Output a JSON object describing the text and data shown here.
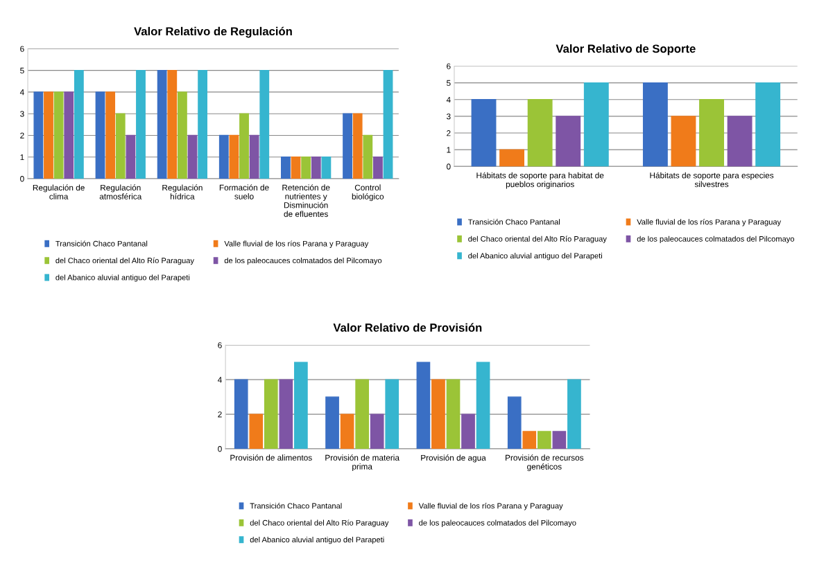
{
  "chart_data": [
    {
      "type": "bar",
      "title": "Valor Relativo de Regulación",
      "categories": [
        "Regulación de clima",
        "Regulación atmosférica",
        "Regulación hídrica",
        "Formación de suelo",
        "Retención de nutrientes y Disminución de efluentes",
        "Control biológico"
      ],
      "series": [
        {
          "name": "Transición Chaco Pantanal",
          "color": "#3a6fc4",
          "values": [
            4,
            4,
            5,
            2,
            1,
            3
          ]
        },
        {
          "name": "Valle fluvial de los ríos Parana y Paraguay",
          "color": "#f07b1a",
          "values": [
            4,
            4,
            5,
            2,
            1,
            3
          ]
        },
        {
          "name": "del Chaco oriental del Alto Río Paraguay",
          "color": "#9bc437",
          "values": [
            4,
            3,
            4,
            3,
            1,
            2
          ]
        },
        {
          "name": "de los paleocauces colmatados del Pilcomayo",
          "color": "#7e55a5",
          "values": [
            4,
            2,
            2,
            2,
            1,
            1
          ]
        },
        {
          "name": "del Abanico aluvial antiguo del Parapeti",
          "color": "#36b5cf",
          "values": [
            5,
            5,
            5,
            5,
            1,
            5
          ]
        }
      ],
      "ylim": [
        0,
        6
      ],
      "yticks": [
        0,
        1,
        2,
        3,
        4,
        5,
        6
      ],
      "grid": "y",
      "legend": "bottom"
    },
    {
      "type": "bar",
      "title": "Valor Relativo de Soporte",
      "categories": [
        "Hábitats de soporte para habitat de pueblos originarios",
        "Hábitats de soporte para especies silvestres"
      ],
      "series": [
        {
          "name": "Transición Chaco Pantanal",
          "color": "#3a6fc4",
          "values": [
            4,
            5
          ]
        },
        {
          "name": "Valle fluvial de los ríos Parana y Paraguay",
          "color": "#f07b1a",
          "values": [
            1,
            3
          ]
        },
        {
          "name": "del Chaco oriental del Alto Río Paraguay",
          "color": "#9bc437",
          "values": [
            4,
            4
          ]
        },
        {
          "name": "de los paleocauces colmatados del Pilcomayo",
          "color": "#7e55a5",
          "values": [
            3,
            3
          ]
        },
        {
          "name": "del Abanico aluvial antiguo del Parapeti",
          "color": "#36b5cf",
          "values": [
            5,
            5
          ]
        }
      ],
      "ylim": [
        0,
        6
      ],
      "yticks": [
        0,
        1,
        2,
        3,
        4,
        5,
        6
      ],
      "grid": "y",
      "legend": "bottom"
    },
    {
      "type": "bar",
      "title": "Valor Relativo de Provisión",
      "categories": [
        "Provisión de alimentos",
        "Provisión de materia prima",
        "Provisión de agua",
        "Provisión de recursos genéticos"
      ],
      "series": [
        {
          "name": "Transición Chaco Pantanal",
          "color": "#3a6fc4",
          "values": [
            4,
            3,
            5,
            3
          ]
        },
        {
          "name": "Valle fluvial de los ríos Parana y Paraguay",
          "color": "#f07b1a",
          "values": [
            2,
            2,
            4,
            1
          ]
        },
        {
          "name": "del Chaco oriental del Alto Río Paraguay",
          "color": "#9bc437",
          "values": [
            4,
            4,
            4,
            1
          ]
        },
        {
          "name": "de los paleocauces colmatados del Pilcomayo",
          "color": "#7e55a5",
          "values": [
            4,
            2,
            2,
            1
          ]
        },
        {
          "name": "del Abanico aluvial antiguo del Parapeti",
          "color": "#36b5cf",
          "values": [
            5,
            4,
            5,
            4
          ]
        }
      ],
      "ylim": [
        0,
        6
      ],
      "yticks": [
        0,
        2,
        4,
        6
      ],
      "grid": "y",
      "legend": "bottom"
    }
  ]
}
